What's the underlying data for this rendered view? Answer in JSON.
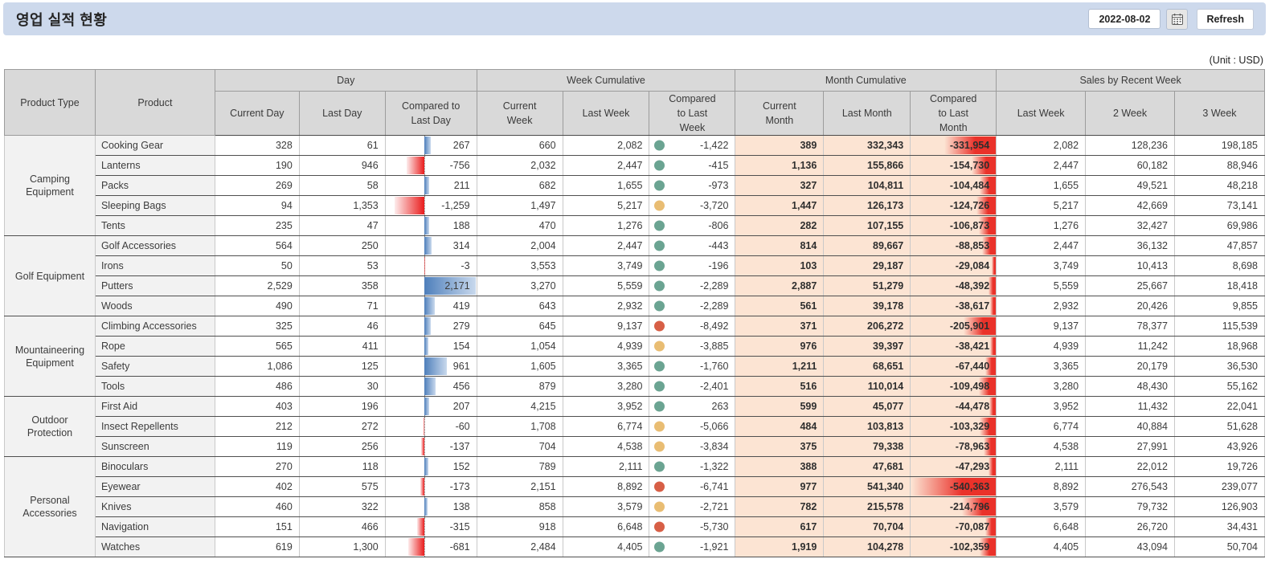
{
  "header": {
    "title": "영업 실적 현황",
    "date_value": "2022-08-02",
    "refresh_label": "Refresh",
    "calendar_icon": "calendar-icon"
  },
  "unit_label": "(Unit : USD)",
  "colors": {
    "topbar_bg": "#cdd9ec",
    "table_header_bg": "#d9d9d9",
    "group_cell_bg": "#f2f2f2",
    "month_column_bg": "#fce4d3",
    "positive_bar_blue": "#4e7fbb",
    "negative_bar_red": "#e91d1d",
    "status": {
      "green": "#6ba492",
      "orange": "#e9bd73",
      "red": "#d75f46"
    }
  },
  "table": {
    "columns": {
      "product_type": "Product Type",
      "product": "Product",
      "day": {
        "label": "Day",
        "current": "Current Day",
        "last": "Last Day",
        "compared": "Compared to Last Day"
      },
      "week": {
        "label": "Week Cumulative",
        "current": "Current Week",
        "last": "Last Week",
        "compared": "Compared to Last Week"
      },
      "month": {
        "label": "Month Cumulative",
        "current": "Current Month",
        "last": "Last Month",
        "compared": "Compared to Last Month"
      },
      "recent": {
        "label": "Sales by Recent Week",
        "w1": "Last Week",
        "w2": "2 Week",
        "w3": "3 Week"
      }
    },
    "bars": {
      "day_axis_pct": 43,
      "day_scale_max": 2200,
      "month_scale_max": 545000
    },
    "groups": [
      {
        "type": "Camping Equipment",
        "rows": [
          {
            "product": "Cooking Gear",
            "current_day": 328,
            "last_day": 61,
            "compared_day": 267,
            "current_week": 660,
            "last_week": 2082,
            "compared_week": -1422,
            "week_status": "green",
            "current_month": 389,
            "last_month": 332343,
            "compared_month": -331954,
            "recent_last_week": 2082,
            "recent_2_week": 128236,
            "recent_3_week": 198185
          },
          {
            "product": "Lanterns",
            "current_day": 190,
            "last_day": 946,
            "compared_day": -756,
            "current_week": 2032,
            "last_week": 2447,
            "compared_week": -415,
            "week_status": "green",
            "current_month": 1136,
            "last_month": 155866,
            "compared_month": -154730,
            "recent_last_week": 2447,
            "recent_2_week": 60182,
            "recent_3_week": 88946
          },
          {
            "product": "Packs",
            "current_day": 269,
            "last_day": 58,
            "compared_day": 211,
            "current_week": 682,
            "last_week": 1655,
            "compared_week": -973,
            "week_status": "green",
            "current_month": 327,
            "last_month": 104811,
            "compared_month": -104484,
            "recent_last_week": 1655,
            "recent_2_week": 49521,
            "recent_3_week": 48218
          },
          {
            "product": "Sleeping Bags",
            "current_day": 94,
            "last_day": 1353,
            "compared_day": -1259,
            "current_week": 1497,
            "last_week": 5217,
            "compared_week": -3720,
            "week_status": "orange",
            "current_month": 1447,
            "last_month": 126173,
            "compared_month": -124726,
            "recent_last_week": 5217,
            "recent_2_week": 42669,
            "recent_3_week": 73141
          },
          {
            "product": "Tents",
            "current_day": 235,
            "last_day": 47,
            "compared_day": 188,
            "current_week": 470,
            "last_week": 1276,
            "compared_week": -806,
            "week_status": "green",
            "current_month": 282,
            "last_month": 107155,
            "compared_month": -106873,
            "recent_last_week": 1276,
            "recent_2_week": 32427,
            "recent_3_week": 69986
          }
        ]
      },
      {
        "type": "Golf Equipment",
        "rows": [
          {
            "product": "Golf Accessories",
            "current_day": 564,
            "last_day": 250,
            "compared_day": 314,
            "current_week": 2004,
            "last_week": 2447,
            "compared_week": -443,
            "week_status": "green",
            "current_month": 814,
            "last_month": 89667,
            "compared_month": -88853,
            "recent_last_week": 2447,
            "recent_2_week": 36132,
            "recent_3_week": 47857
          },
          {
            "product": "Irons",
            "current_day": 50,
            "last_day": 53,
            "compared_day": -3,
            "current_week": 3553,
            "last_week": 3749,
            "compared_week": -196,
            "week_status": "green",
            "current_month": 103,
            "last_month": 29187,
            "compared_month": -29084,
            "recent_last_week": 3749,
            "recent_2_week": 10413,
            "recent_3_week": 8698
          },
          {
            "product": "Putters",
            "current_day": 2529,
            "last_day": 358,
            "compared_day": 2171,
            "current_week": 3270,
            "last_week": 5559,
            "compared_week": -2289,
            "week_status": "green",
            "current_month": 2887,
            "last_month": 51279,
            "compared_month": -48392,
            "recent_last_week": 5559,
            "recent_2_week": 25667,
            "recent_3_week": 18418
          },
          {
            "product": "Woods",
            "current_day": 490,
            "last_day": 71,
            "compared_day": 419,
            "current_week": 643,
            "last_week": 2932,
            "compared_week": -2289,
            "week_status": "green",
            "current_month": 561,
            "last_month": 39178,
            "compared_month": -38617,
            "recent_last_week": 2932,
            "recent_2_week": 20426,
            "recent_3_week": 9855
          }
        ]
      },
      {
        "type": "Mountaineering Equipment",
        "rows": [
          {
            "product": "Climbing Accessories",
            "current_day": 325,
            "last_day": 46,
            "compared_day": 279,
            "current_week": 645,
            "last_week": 9137,
            "compared_week": -8492,
            "week_status": "red",
            "current_month": 371,
            "last_month": 206272,
            "compared_month": -205901,
            "recent_last_week": 9137,
            "recent_2_week": 78377,
            "recent_3_week": 115539
          },
          {
            "product": "Rope",
            "current_day": 565,
            "last_day": 411,
            "compared_day": 154,
            "current_week": 1054,
            "last_week": 4939,
            "compared_week": -3885,
            "week_status": "orange",
            "current_month": 976,
            "last_month": 39397,
            "compared_month": -38421,
            "recent_last_week": 4939,
            "recent_2_week": 11242,
            "recent_3_week": 18968
          },
          {
            "product": "Safety",
            "current_day": 1086,
            "last_day": 125,
            "compared_day": 961,
            "current_week": 1605,
            "last_week": 3365,
            "compared_week": -1760,
            "week_status": "green",
            "current_month": 1211,
            "last_month": 68651,
            "compared_month": -67440,
            "recent_last_week": 3365,
            "recent_2_week": 20179,
            "recent_3_week": 36530
          },
          {
            "product": "Tools",
            "current_day": 486,
            "last_day": 30,
            "compared_day": 456,
            "current_week": 879,
            "last_week": 3280,
            "compared_week": -2401,
            "week_status": "green",
            "current_month": 516,
            "last_month": 110014,
            "compared_month": -109498,
            "recent_last_week": 3280,
            "recent_2_week": 48430,
            "recent_3_week": 55162
          }
        ]
      },
      {
        "type": "Outdoor Protection",
        "rows": [
          {
            "product": "First Aid",
            "current_day": 403,
            "last_day": 196,
            "compared_day": 207,
            "current_week": 4215,
            "last_week": 3952,
            "compared_week": 263,
            "week_status": "green",
            "current_month": 599,
            "last_month": 45077,
            "compared_month": -44478,
            "recent_last_week": 3952,
            "recent_2_week": 11432,
            "recent_3_week": 22041
          },
          {
            "product": "Insect Repellents",
            "current_day": 212,
            "last_day": 272,
            "compared_day": -60,
            "current_week": 1708,
            "last_week": 6774,
            "compared_week": -5066,
            "week_status": "orange",
            "current_month": 484,
            "last_month": 103813,
            "compared_month": -103329,
            "recent_last_week": 6774,
            "recent_2_week": 40884,
            "recent_3_week": 51628
          },
          {
            "product": "Sunscreen",
            "current_day": 119,
            "last_day": 256,
            "compared_day": -137,
            "current_week": 704,
            "last_week": 4538,
            "compared_week": -3834,
            "week_status": "orange",
            "current_month": 375,
            "last_month": 79338,
            "compared_month": -78963,
            "recent_last_week": 4538,
            "recent_2_week": 27991,
            "recent_3_week": 43926
          }
        ]
      },
      {
        "type": "Personal Accessories",
        "rows": [
          {
            "product": "Binoculars",
            "current_day": 270,
            "last_day": 118,
            "compared_day": 152,
            "current_week": 789,
            "last_week": 2111,
            "compared_week": -1322,
            "week_status": "green",
            "current_month": 388,
            "last_month": 47681,
            "compared_month": -47293,
            "recent_last_week": 2111,
            "recent_2_week": 22012,
            "recent_3_week": 19726
          },
          {
            "product": "Eyewear",
            "current_day": 402,
            "last_day": 575,
            "compared_day": -173,
            "current_week": 2151,
            "last_week": 8892,
            "compared_week": -6741,
            "week_status": "red",
            "current_month": 977,
            "last_month": 541340,
            "compared_month": -540363,
            "recent_last_week": 8892,
            "recent_2_week": 276543,
            "recent_3_week": 239077
          },
          {
            "product": "Knives",
            "current_day": 460,
            "last_day": 322,
            "compared_day": 138,
            "current_week": 858,
            "last_week": 3579,
            "compared_week": -2721,
            "week_status": "orange",
            "current_month": 782,
            "last_month": 215578,
            "compared_month": -214796,
            "recent_last_week": 3579,
            "recent_2_week": 79732,
            "recent_3_week": 126903
          },
          {
            "product": "Navigation",
            "current_day": 151,
            "last_day": 466,
            "compared_day": -315,
            "current_week": 918,
            "last_week": 6648,
            "compared_week": -5730,
            "week_status": "red",
            "current_month": 617,
            "last_month": 70704,
            "compared_month": -70087,
            "recent_last_week": 6648,
            "recent_2_week": 26720,
            "recent_3_week": 34431
          },
          {
            "product": "Watches",
            "current_day": 619,
            "last_day": 1300,
            "compared_day": -681,
            "current_week": 2484,
            "last_week": 4405,
            "compared_week": -1921,
            "week_status": "green",
            "current_month": 1919,
            "last_month": 104278,
            "compared_month": -102359,
            "recent_last_week": 4405,
            "recent_2_week": 43094,
            "recent_3_week": 50704
          }
        ]
      }
    ]
  }
}
